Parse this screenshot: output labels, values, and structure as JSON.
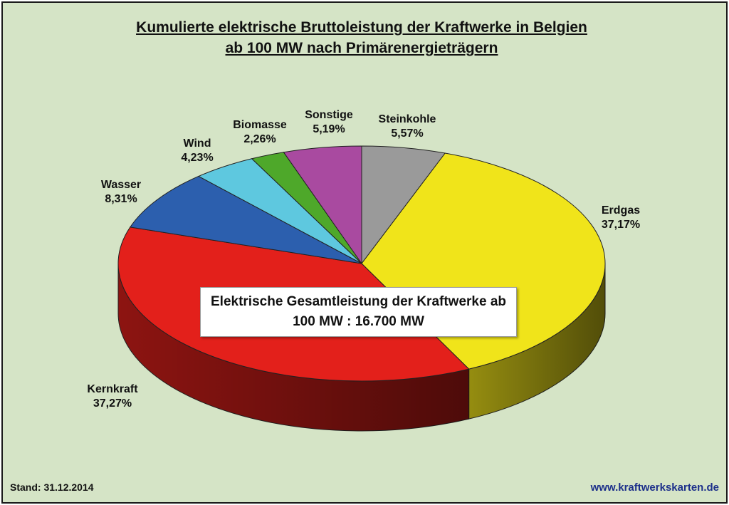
{
  "chart_data": {
    "type": "pie",
    "title_line1": "Kumulierte elektrische Bruttoleistung der Kraftwerke in Belgien",
    "title_line2": "ab 100 MW nach Primärenergieträgern",
    "slices": [
      {
        "name": "Steinkohle",
        "label": "5,57%",
        "value": 5.57,
        "color": "#9a9a9a"
      },
      {
        "name": "Erdgas",
        "label": "37,17%",
        "value": 37.17,
        "color": "#f0e41a"
      },
      {
        "name": "Kernkraft",
        "label": "37,27%",
        "value": 37.27,
        "color": "#e3201b"
      },
      {
        "name": "Wasser",
        "label": "8,31%",
        "value": 8.31,
        "color": "#2c5fae"
      },
      {
        "name": "Wind",
        "label": "4,23%",
        "value": 4.23,
        "color": "#5ec8df"
      },
      {
        "name": "Biomasse",
        "label": "2,26%",
        "value": 2.26,
        "color": "#4ea82a"
      },
      {
        "name": "Sonstige",
        "label": "5,19%",
        "value": 5.19,
        "color": "#a94aa0"
      }
    ],
    "annotation_line1": "Elektrische Gesamtleistung der Kraftwerke ab",
    "annotation_line2": "100 MW :  16.700 MW"
  },
  "footer": {
    "stand": "Stand: 31.12.2014",
    "website": "www.kraftwerkskarten.de"
  },
  "colors": {
    "background": "#d5e4c6",
    "website": "#1c2f8a"
  }
}
